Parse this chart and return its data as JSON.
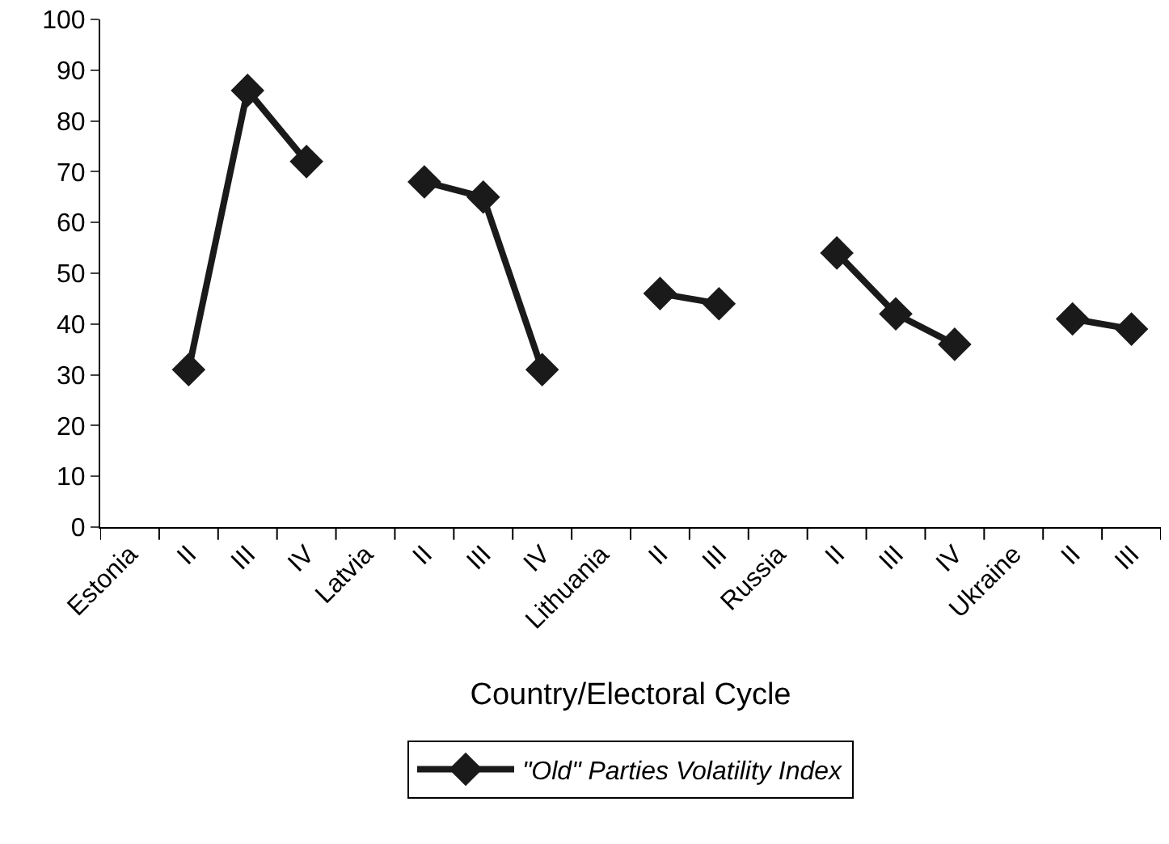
{
  "chart_data": {
    "type": "line",
    "xlabel": "Country/Electoral Cycle",
    "categories": [
      "Estonia",
      "II",
      "III",
      "IV",
      "Latvia",
      "II",
      "III",
      "IV",
      "Lithuania",
      "II",
      "III",
      "Russia",
      "II",
      "III",
      "IV",
      "Ukraine",
      "II",
      "III"
    ],
    "series": [
      {
        "name": "\"Old\" Parties Volatility Index",
        "color": "#1a1a1a",
        "values": [
          null,
          31,
          86,
          72,
          null,
          68,
          65,
          31,
          null,
          46,
          44,
          null,
          54,
          42,
          36,
          null,
          41,
          39
        ]
      }
    ],
    "ylim": [
      0,
      100
    ],
    "yticks": [
      0,
      10,
      20,
      30,
      40,
      50,
      60,
      70,
      80,
      90,
      100
    ],
    "grid": false,
    "legend": "bottom",
    "marker": "diamond",
    "line_style": "solid"
  }
}
